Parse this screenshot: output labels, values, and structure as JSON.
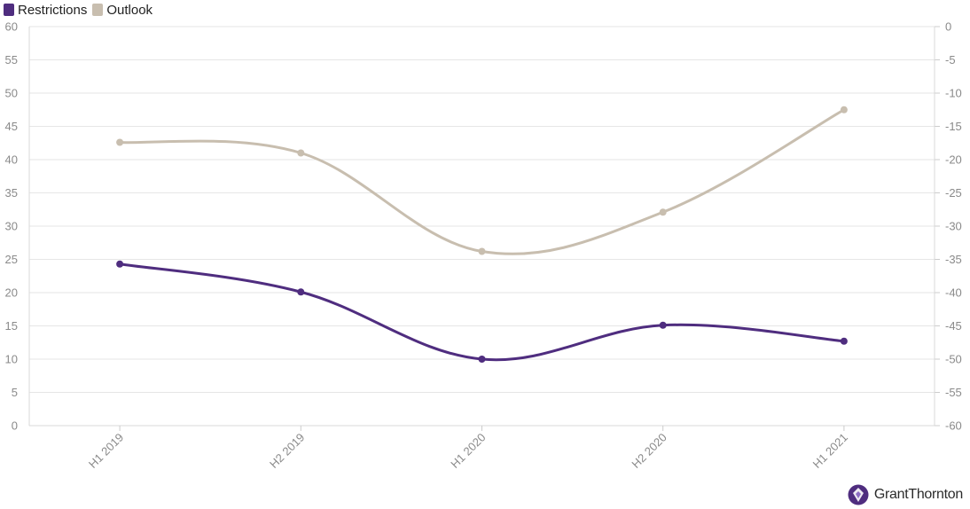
{
  "legend": {
    "items": [
      {
        "label": "Restrictions",
        "color": "#4f2d7f"
      },
      {
        "label": "Outlook",
        "color": "#c8beaf"
      }
    ]
  },
  "branding": {
    "name": "GrantThornton",
    "icon": "grant-thornton-logo-icon",
    "color": "#4f2d7f"
  },
  "chart_data": {
    "type": "line",
    "categories": [
      "H1 2019",
      "H2 2019",
      "H1 2020",
      "H2 2020",
      "H1 2021"
    ],
    "y_left": {
      "min": 0,
      "max": 60,
      "step": 5
    },
    "y_right": {
      "min": -60,
      "max": 0,
      "step": 5
    },
    "grid": true,
    "legend_position": "top-left",
    "series": [
      {
        "name": "Restrictions",
        "axis": "left",
        "color": "#4f2d7f",
        "values": [
          24.3,
          20.1,
          10.0,
          15.1,
          12.7
        ]
      },
      {
        "name": "Outlook",
        "axis": "right",
        "color": "#c8beaf",
        "values": [
          -17.4,
          -19.0,
          -33.8,
          -27.9,
          -12.5
        ]
      }
    ]
  }
}
